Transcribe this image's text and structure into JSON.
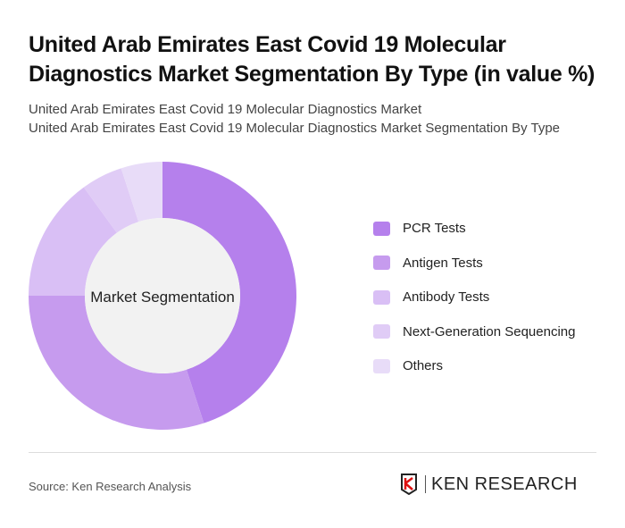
{
  "chart_data": {
    "type": "pie",
    "title": "United Arab Emirates East Covid 19 Molecular Diagnostics Market Segmentation By Type (in value %)",
    "subtitles": [
      "United Arab Emirates East Covid 19 Molecular Diagnostics Market",
      "United Arab Emirates East Covid 19 Molecular Diagnostics Market Segmentation By Type"
    ],
    "center_label": "Market Segmentation",
    "legend_placement": "right",
    "categories": [
      "PCR Tests",
      "Antigen Tests",
      "Antibody Tests",
      "Next-Generation Sequencing",
      "Others"
    ],
    "values": [
      45,
      30,
      15,
      5,
      5
    ],
    "colors": [
      "#b580ec",
      "#c69bee",
      "#d9bff5",
      "#e0ccf6",
      "#e8dcf8"
    ]
  },
  "footer": {
    "source": "Source: Ken Research Analysis",
    "logo": "KEN RESEARCH"
  }
}
